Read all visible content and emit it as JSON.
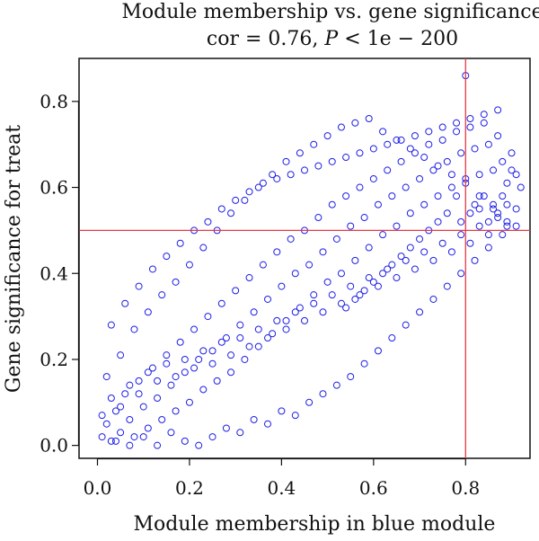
{
  "chart_data": {
    "type": "scatter",
    "title_line1": "Module membership vs. gene significance",
    "title_line2": {
      "cor_prefix": "cor = 0.76, ",
      "p_symbol": "P",
      "p_suffix": " < 1e − 200"
    },
    "xlabel": "Module membership in blue module",
    "ylabel": "Gene significance for treat",
    "xlim": [
      -0.04,
      0.94
    ],
    "ylim": [
      -0.03,
      0.9
    ],
    "x_ticks": [
      "0.0",
      "0.2",
      "0.4",
      "0.6",
      "0.8"
    ],
    "y_ticks": [
      "0.0",
      "0.2",
      "0.4",
      "0.6",
      "0.8"
    ],
    "x_tick_values": [
      0.0,
      0.2,
      0.4,
      0.6,
      0.8
    ],
    "y_tick_values": [
      0.0,
      0.2,
      0.4,
      0.6,
      0.8
    ],
    "grid": false,
    "marker": "open-circle",
    "point_color": "#1f1fe6",
    "reference_line_color": "#e63946",
    "vline_x": 0.8,
    "hline_y": 0.5,
    "series": [
      {
        "points": [
          [
            0.01,
            0.02
          ],
          [
            0.02,
            0.05
          ],
          [
            0.03,
            0.01
          ],
          [
            0.04,
            0.08
          ],
          [
            0.05,
            0.03
          ],
          [
            0.06,
            0.12
          ],
          [
            0.07,
            0.06
          ],
          [
            0.08,
            0.02
          ],
          [
            0.09,
            0.15
          ],
          [
            0.1,
            0.09
          ],
          [
            0.11,
            0.04
          ],
          [
            0.12,
            0.18
          ],
          [
            0.13,
            0.11
          ],
          [
            0.14,
            0.06
          ],
          [
            0.15,
            0.21
          ],
          [
            0.16,
            0.14
          ],
          [
            0.17,
            0.08
          ],
          [
            0.18,
            0.24
          ],
          [
            0.19,
            0.17
          ],
          [
            0.2,
            0.1
          ],
          [
            0.21,
            0.27
          ],
          [
            0.22,
            0.2
          ],
          [
            0.23,
            0.13
          ],
          [
            0.24,
            0.3
          ],
          [
            0.25,
            0.22
          ],
          [
            0.26,
            0.15
          ],
          [
            0.27,
            0.33
          ],
          [
            0.28,
            0.25
          ],
          [
            0.29,
            0.17
          ],
          [
            0.3,
            0.36
          ],
          [
            0.31,
            0.28
          ],
          [
            0.32,
            0.2
          ],
          [
            0.33,
            0.39
          ],
          [
            0.34,
            0.31
          ],
          [
            0.35,
            0.23
          ],
          [
            0.36,
            0.42
          ],
          [
            0.37,
            0.34
          ],
          [
            0.38,
            0.26
          ],
          [
            0.39,
            0.45
          ],
          [
            0.4,
            0.37
          ],
          [
            0.41,
            0.29
          ],
          [
            0.42,
            0.48
          ],
          [
            0.43,
            0.4
          ],
          [
            0.44,
            0.32
          ],
          [
            0.45,
            0.5
          ],
          [
            0.46,
            0.42
          ],
          [
            0.47,
            0.35
          ],
          [
            0.48,
            0.53
          ],
          [
            0.49,
            0.45
          ],
          [
            0.5,
            0.38
          ],
          [
            0.51,
            0.56
          ],
          [
            0.52,
            0.48
          ],
          [
            0.53,
            0.4
          ],
          [
            0.54,
            0.58
          ],
          [
            0.55,
            0.51
          ],
          [
            0.56,
            0.43
          ],
          [
            0.57,
            0.6
          ],
          [
            0.58,
            0.53
          ],
          [
            0.59,
            0.46
          ],
          [
            0.6,
            0.62
          ],
          [
            0.61,
            0.56
          ],
          [
            0.62,
            0.49
          ],
          [
            0.63,
            0.64
          ],
          [
            0.64,
            0.58
          ],
          [
            0.65,
            0.51
          ],
          [
            0.66,
            0.66
          ],
          [
            0.67,
            0.6
          ],
          [
            0.68,
            0.54
          ],
          [
            0.69,
            0.68
          ],
          [
            0.7,
            0.62
          ],
          [
            0.71,
            0.56
          ],
          [
            0.72,
            0.7
          ],
          [
            0.73,
            0.64
          ],
          [
            0.74,
            0.58
          ],
          [
            0.75,
            0.71
          ],
          [
            0.76,
            0.66
          ],
          [
            0.77,
            0.6
          ],
          [
            0.78,
            0.73
          ],
          [
            0.79,
            0.68
          ],
          [
            0.8,
            0.62
          ],
          [
            0.81,
            0.74
          ],
          [
            0.82,
            0.69
          ],
          [
            0.83,
            0.63
          ],
          [
            0.84,
            0.75
          ],
          [
            0.85,
            0.7
          ],
          [
            0.86,
            0.64
          ],
          [
            0.87,
            0.72
          ],
          [
            0.88,
            0.66
          ],
          [
            0.89,
            0.61
          ],
          [
            0.9,
            0.68
          ],
          [
            0.91,
            0.63
          ],
          [
            0.92,
            0.6
          ],
          [
            0.02,
            0.16
          ],
          [
            0.05,
            0.21
          ],
          [
            0.08,
            0.27
          ],
          [
            0.11,
            0.31
          ],
          [
            0.14,
            0.35
          ],
          [
            0.17,
            0.38
          ],
          [
            0.2,
            0.42
          ],
          [
            0.23,
            0.46
          ],
          [
            0.26,
            0.5
          ],
          [
            0.29,
            0.54
          ],
          [
            0.32,
            0.57
          ],
          [
            0.35,
            0.6
          ],
          [
            0.38,
            0.63
          ],
          [
            0.41,
            0.66
          ],
          [
            0.44,
            0.68
          ],
          [
            0.47,
            0.7
          ],
          [
            0.5,
            0.72
          ],
          [
            0.53,
            0.74
          ],
          [
            0.56,
            0.75
          ],
          [
            0.59,
            0.76
          ],
          [
            0.62,
            0.73
          ],
          [
            0.65,
            0.71
          ],
          [
            0.68,
            0.69
          ],
          [
            0.71,
            0.67
          ],
          [
            0.74,
            0.65
          ],
          [
            0.77,
            0.63
          ],
          [
            0.8,
            0.61
          ],
          [
            0.83,
            0.58
          ],
          [
            0.86,
            0.55
          ],
          [
            0.89,
            0.52
          ],
          [
            0.03,
            0.28
          ],
          [
            0.06,
            0.33
          ],
          [
            0.09,
            0.37
          ],
          [
            0.12,
            0.41
          ],
          [
            0.15,
            0.44
          ],
          [
            0.18,
            0.47
          ],
          [
            0.21,
            0.5
          ],
          [
            0.24,
            0.52
          ],
          [
            0.27,
            0.55
          ],
          [
            0.3,
            0.57
          ],
          [
            0.33,
            0.59
          ],
          [
            0.36,
            0.61
          ],
          [
            0.39,
            0.62
          ],
          [
            0.42,
            0.63
          ],
          [
            0.45,
            0.64
          ],
          [
            0.48,
            0.65
          ],
          [
            0.51,
            0.66
          ],
          [
            0.54,
            0.67
          ],
          [
            0.57,
            0.68
          ],
          [
            0.6,
            0.69
          ],
          [
            0.63,
            0.7
          ],
          [
            0.66,
            0.71
          ],
          [
            0.69,
            0.72
          ],
          [
            0.72,
            0.73
          ],
          [
            0.75,
            0.74
          ],
          [
            0.78,
            0.75
          ],
          [
            0.81,
            0.76
          ],
          [
            0.84,
            0.77
          ],
          [
            0.87,
            0.78
          ],
          [
            0.9,
            0.64
          ],
          [
            0.04,
            0.01
          ],
          [
            0.07,
            0.0
          ],
          [
            0.1,
            0.02
          ],
          [
            0.13,
            0.0
          ],
          [
            0.16,
            0.03
          ],
          [
            0.19,
            0.01
          ],
          [
            0.22,
            0.0
          ],
          [
            0.25,
            0.02
          ],
          [
            0.28,
            0.04
          ],
          [
            0.31,
            0.03
          ],
          [
            0.34,
            0.06
          ],
          [
            0.37,
            0.05
          ],
          [
            0.4,
            0.08
          ],
          [
            0.43,
            0.07
          ],
          [
            0.46,
            0.1
          ],
          [
            0.49,
            0.12
          ],
          [
            0.52,
            0.14
          ],
          [
            0.55,
            0.16
          ],
          [
            0.58,
            0.19
          ],
          [
            0.61,
            0.22
          ],
          [
            0.64,
            0.25
          ],
          [
            0.67,
            0.28
          ],
          [
            0.7,
            0.31
          ],
          [
            0.73,
            0.34
          ],
          [
            0.76,
            0.37
          ],
          [
            0.79,
            0.4
          ],
          [
            0.82,
            0.43
          ],
          [
            0.85,
            0.46
          ],
          [
            0.88,
            0.49
          ],
          [
            0.91,
            0.51
          ],
          [
            0.01,
            0.07
          ],
          [
            0.03,
            0.11
          ],
          [
            0.05,
            0.09
          ],
          [
            0.07,
            0.14
          ],
          [
            0.09,
            0.12
          ],
          [
            0.11,
            0.17
          ],
          [
            0.13,
            0.15
          ],
          [
            0.15,
            0.19
          ],
          [
            0.17,
            0.16
          ],
          [
            0.19,
            0.2
          ],
          [
            0.21,
            0.18
          ],
          [
            0.23,
            0.22
          ],
          [
            0.25,
            0.19
          ],
          [
            0.27,
            0.24
          ],
          [
            0.29,
            0.21
          ],
          [
            0.31,
            0.25
          ],
          [
            0.33,
            0.23
          ],
          [
            0.35,
            0.27
          ],
          [
            0.37,
            0.25
          ],
          [
            0.39,
            0.29
          ],
          [
            0.41,
            0.27
          ],
          [
            0.43,
            0.31
          ],
          [
            0.45,
            0.29
          ],
          [
            0.47,
            0.33
          ],
          [
            0.49,
            0.31
          ],
          [
            0.51,
            0.35
          ],
          [
            0.53,
            0.33
          ],
          [
            0.55,
            0.37
          ],
          [
            0.57,
            0.35
          ],
          [
            0.59,
            0.39
          ],
          [
            0.61,
            0.37
          ],
          [
            0.63,
            0.41
          ],
          [
            0.65,
            0.39
          ],
          [
            0.67,
            0.43
          ],
          [
            0.69,
            0.41
          ],
          [
            0.71,
            0.45
          ],
          [
            0.73,
            0.43
          ],
          [
            0.75,
            0.47
          ],
          [
            0.77,
            0.45
          ],
          [
            0.79,
            0.49
          ],
          [
            0.81,
            0.47
          ],
          [
            0.83,
            0.51
          ],
          [
            0.85,
            0.49
          ],
          [
            0.87,
            0.53
          ],
          [
            0.89,
            0.51
          ],
          [
            0.91,
            0.55
          ],
          [
            0.8,
            0.86
          ],
          [
            0.78,
            0.58
          ],
          [
            0.82,
            0.56
          ],
          [
            0.84,
            0.58
          ],
          [
            0.86,
            0.56
          ],
          [
            0.88,
            0.58
          ],
          [
            0.79,
            0.52
          ],
          [
            0.81,
            0.54
          ],
          [
            0.83,
            0.55
          ],
          [
            0.85,
            0.52
          ],
          [
            0.87,
            0.54
          ],
          [
            0.89,
            0.56
          ],
          [
            0.76,
            0.54
          ],
          [
            0.74,
            0.52
          ],
          [
            0.72,
            0.5
          ],
          [
            0.7,
            0.48
          ],
          [
            0.68,
            0.46
          ],
          [
            0.66,
            0.44
          ],
          [
            0.64,
            0.42
          ],
          [
            0.62,
            0.4
          ],
          [
            0.6,
            0.38
          ],
          [
            0.58,
            0.36
          ],
          [
            0.56,
            0.34
          ],
          [
            0.54,
            0.32
          ]
        ]
      }
    ]
  }
}
